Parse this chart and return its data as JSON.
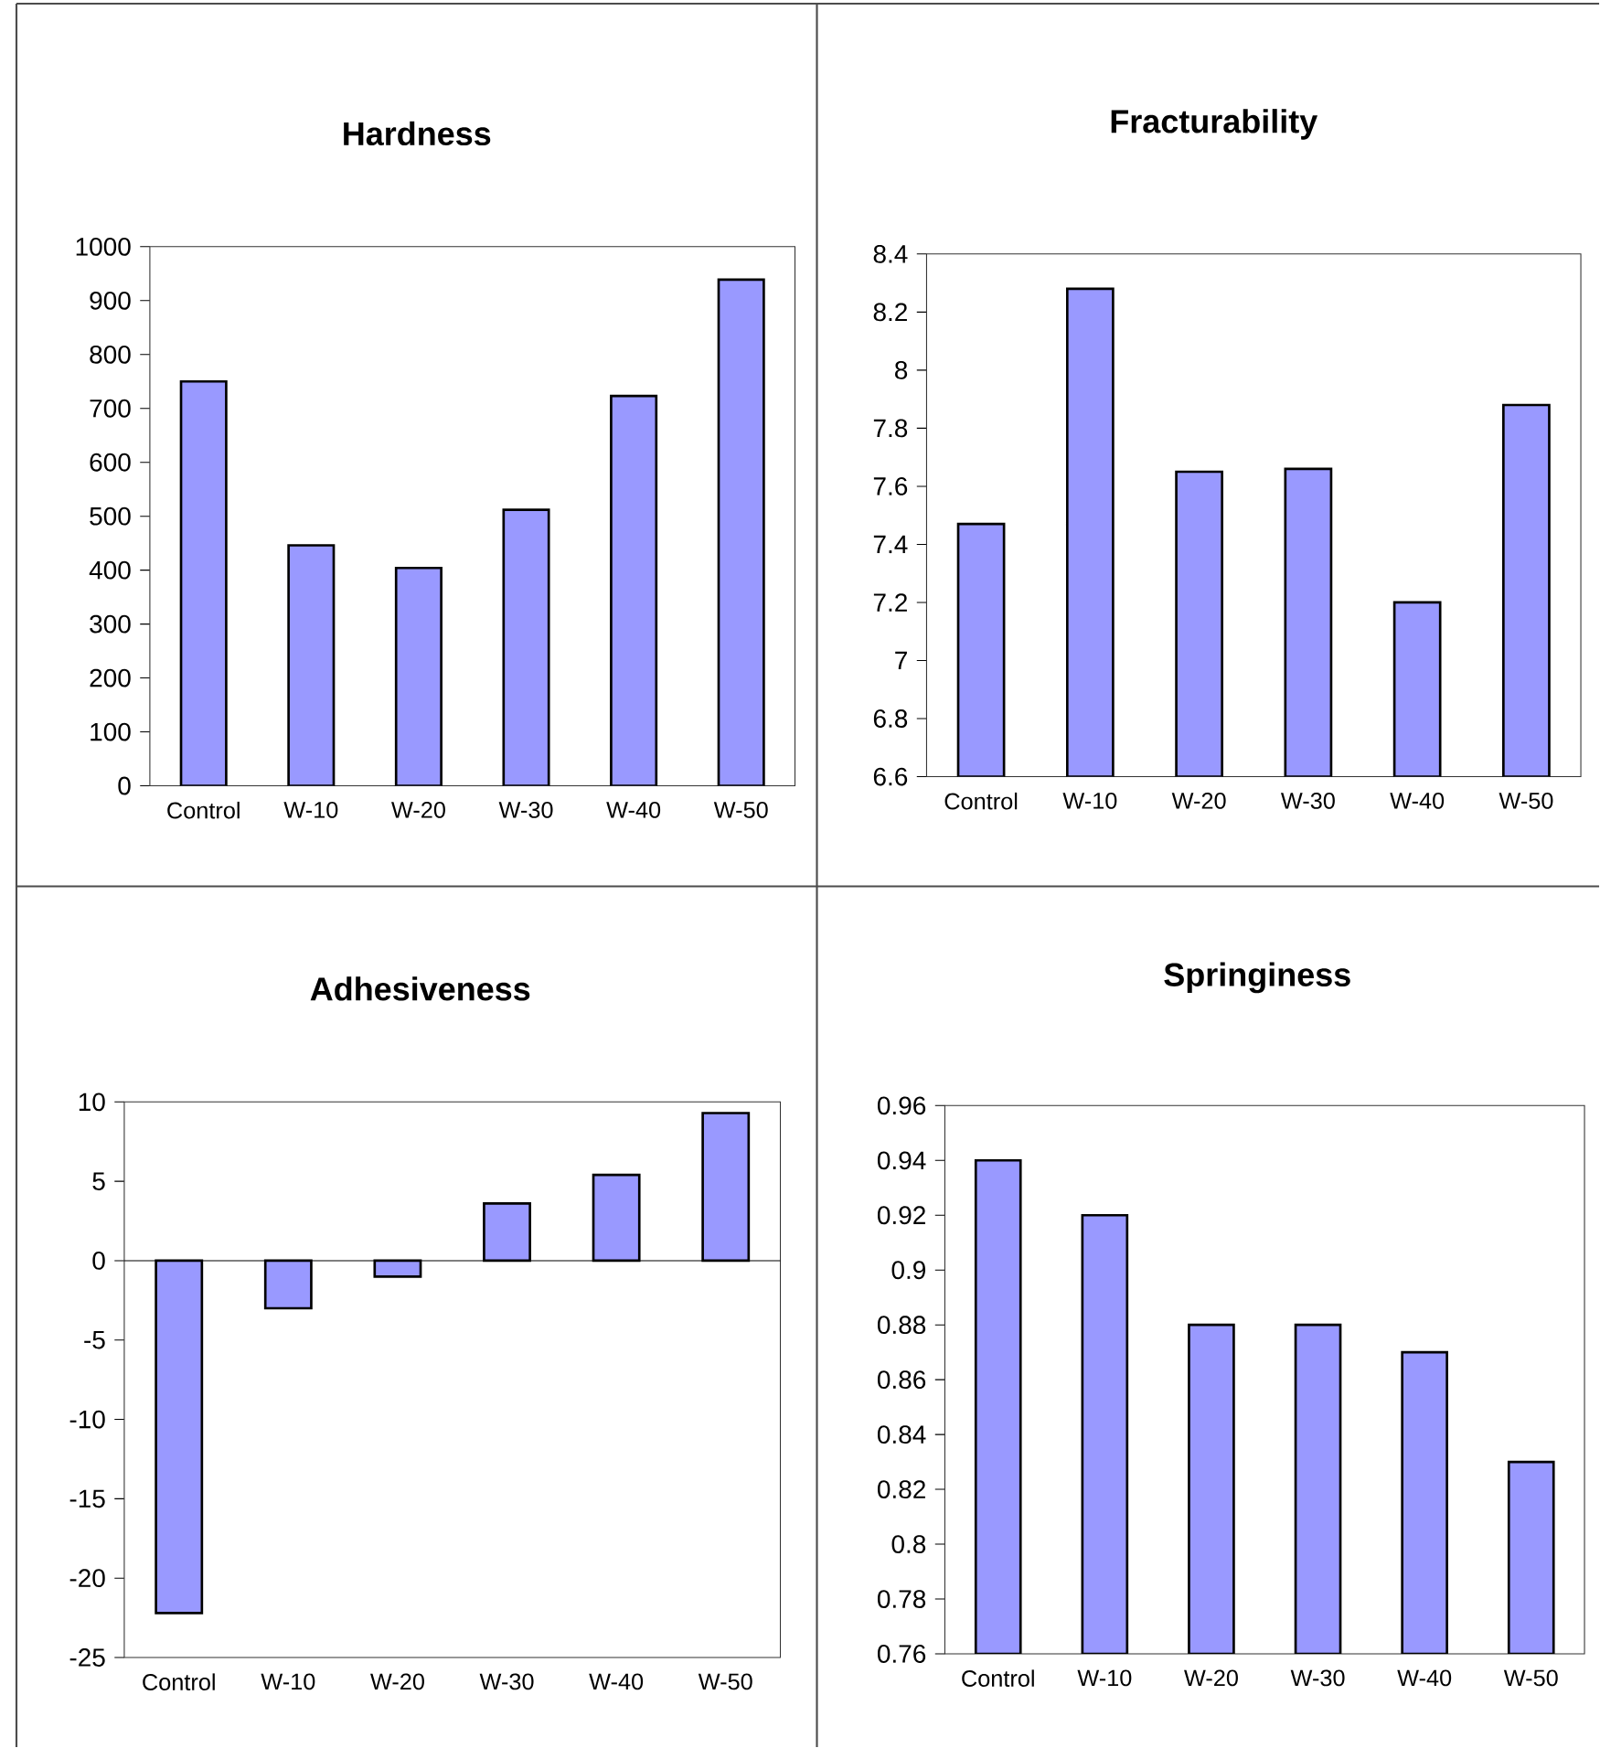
{
  "chart_data": [
    {
      "type": "bar",
      "title": "Hardness",
      "categories": [
        "Control",
        "W-10",
        "W-20",
        "W-30",
        "W-40",
        "W-50"
      ],
      "values": [
        750,
        446,
        404,
        512,
        723,
        939
      ],
      "color": "#9999ff",
      "ylim": [
        0,
        1000
      ],
      "yticks": [
        0,
        100,
        200,
        300,
        400,
        500,
        600,
        700,
        800,
        900,
        1000
      ]
    },
    {
      "type": "bar",
      "title": "Fracturability",
      "categories": [
        "Control",
        "W-10",
        "W-20",
        "W-30",
        "W-40",
        "W-50"
      ],
      "values": [
        7.47,
        8.28,
        7.65,
        7.66,
        7.2,
        7.88
      ],
      "color": "#9999ff",
      "ylim": [
        6.6,
        8.4
      ],
      "yticks": [
        6.6,
        6.8,
        7,
        7.2,
        7.4,
        7.6,
        7.8,
        8,
        8.2,
        8.4
      ]
    },
    {
      "type": "bar",
      "title": "Adhesiveness",
      "categories": [
        "Control",
        "W-10",
        "W-20",
        "W-30",
        "W-40",
        "W-50"
      ],
      "values": [
        -22.2,
        -3.0,
        -1.0,
        3.6,
        5.4,
        9.3
      ],
      "color": "#9999ff",
      "ylim": [
        -25,
        10
      ],
      "yticks": [
        -25,
        -20,
        -15,
        -10,
        -5,
        0,
        5,
        10
      ]
    },
    {
      "type": "bar",
      "title": "Springiness",
      "categories": [
        "Control",
        "W-10",
        "W-20",
        "W-30",
        "W-40",
        "W-50"
      ],
      "values": [
        0.94,
        0.92,
        0.88,
        0.88,
        0.87,
        0.83
      ],
      "color": "#9999ff",
      "ylim": [
        0.76,
        0.96
      ],
      "yticks": [
        0.76,
        0.78,
        0.8,
        0.82,
        0.84,
        0.86,
        0.88,
        0.9,
        0.92,
        0.94,
        0.96
      ]
    }
  ]
}
